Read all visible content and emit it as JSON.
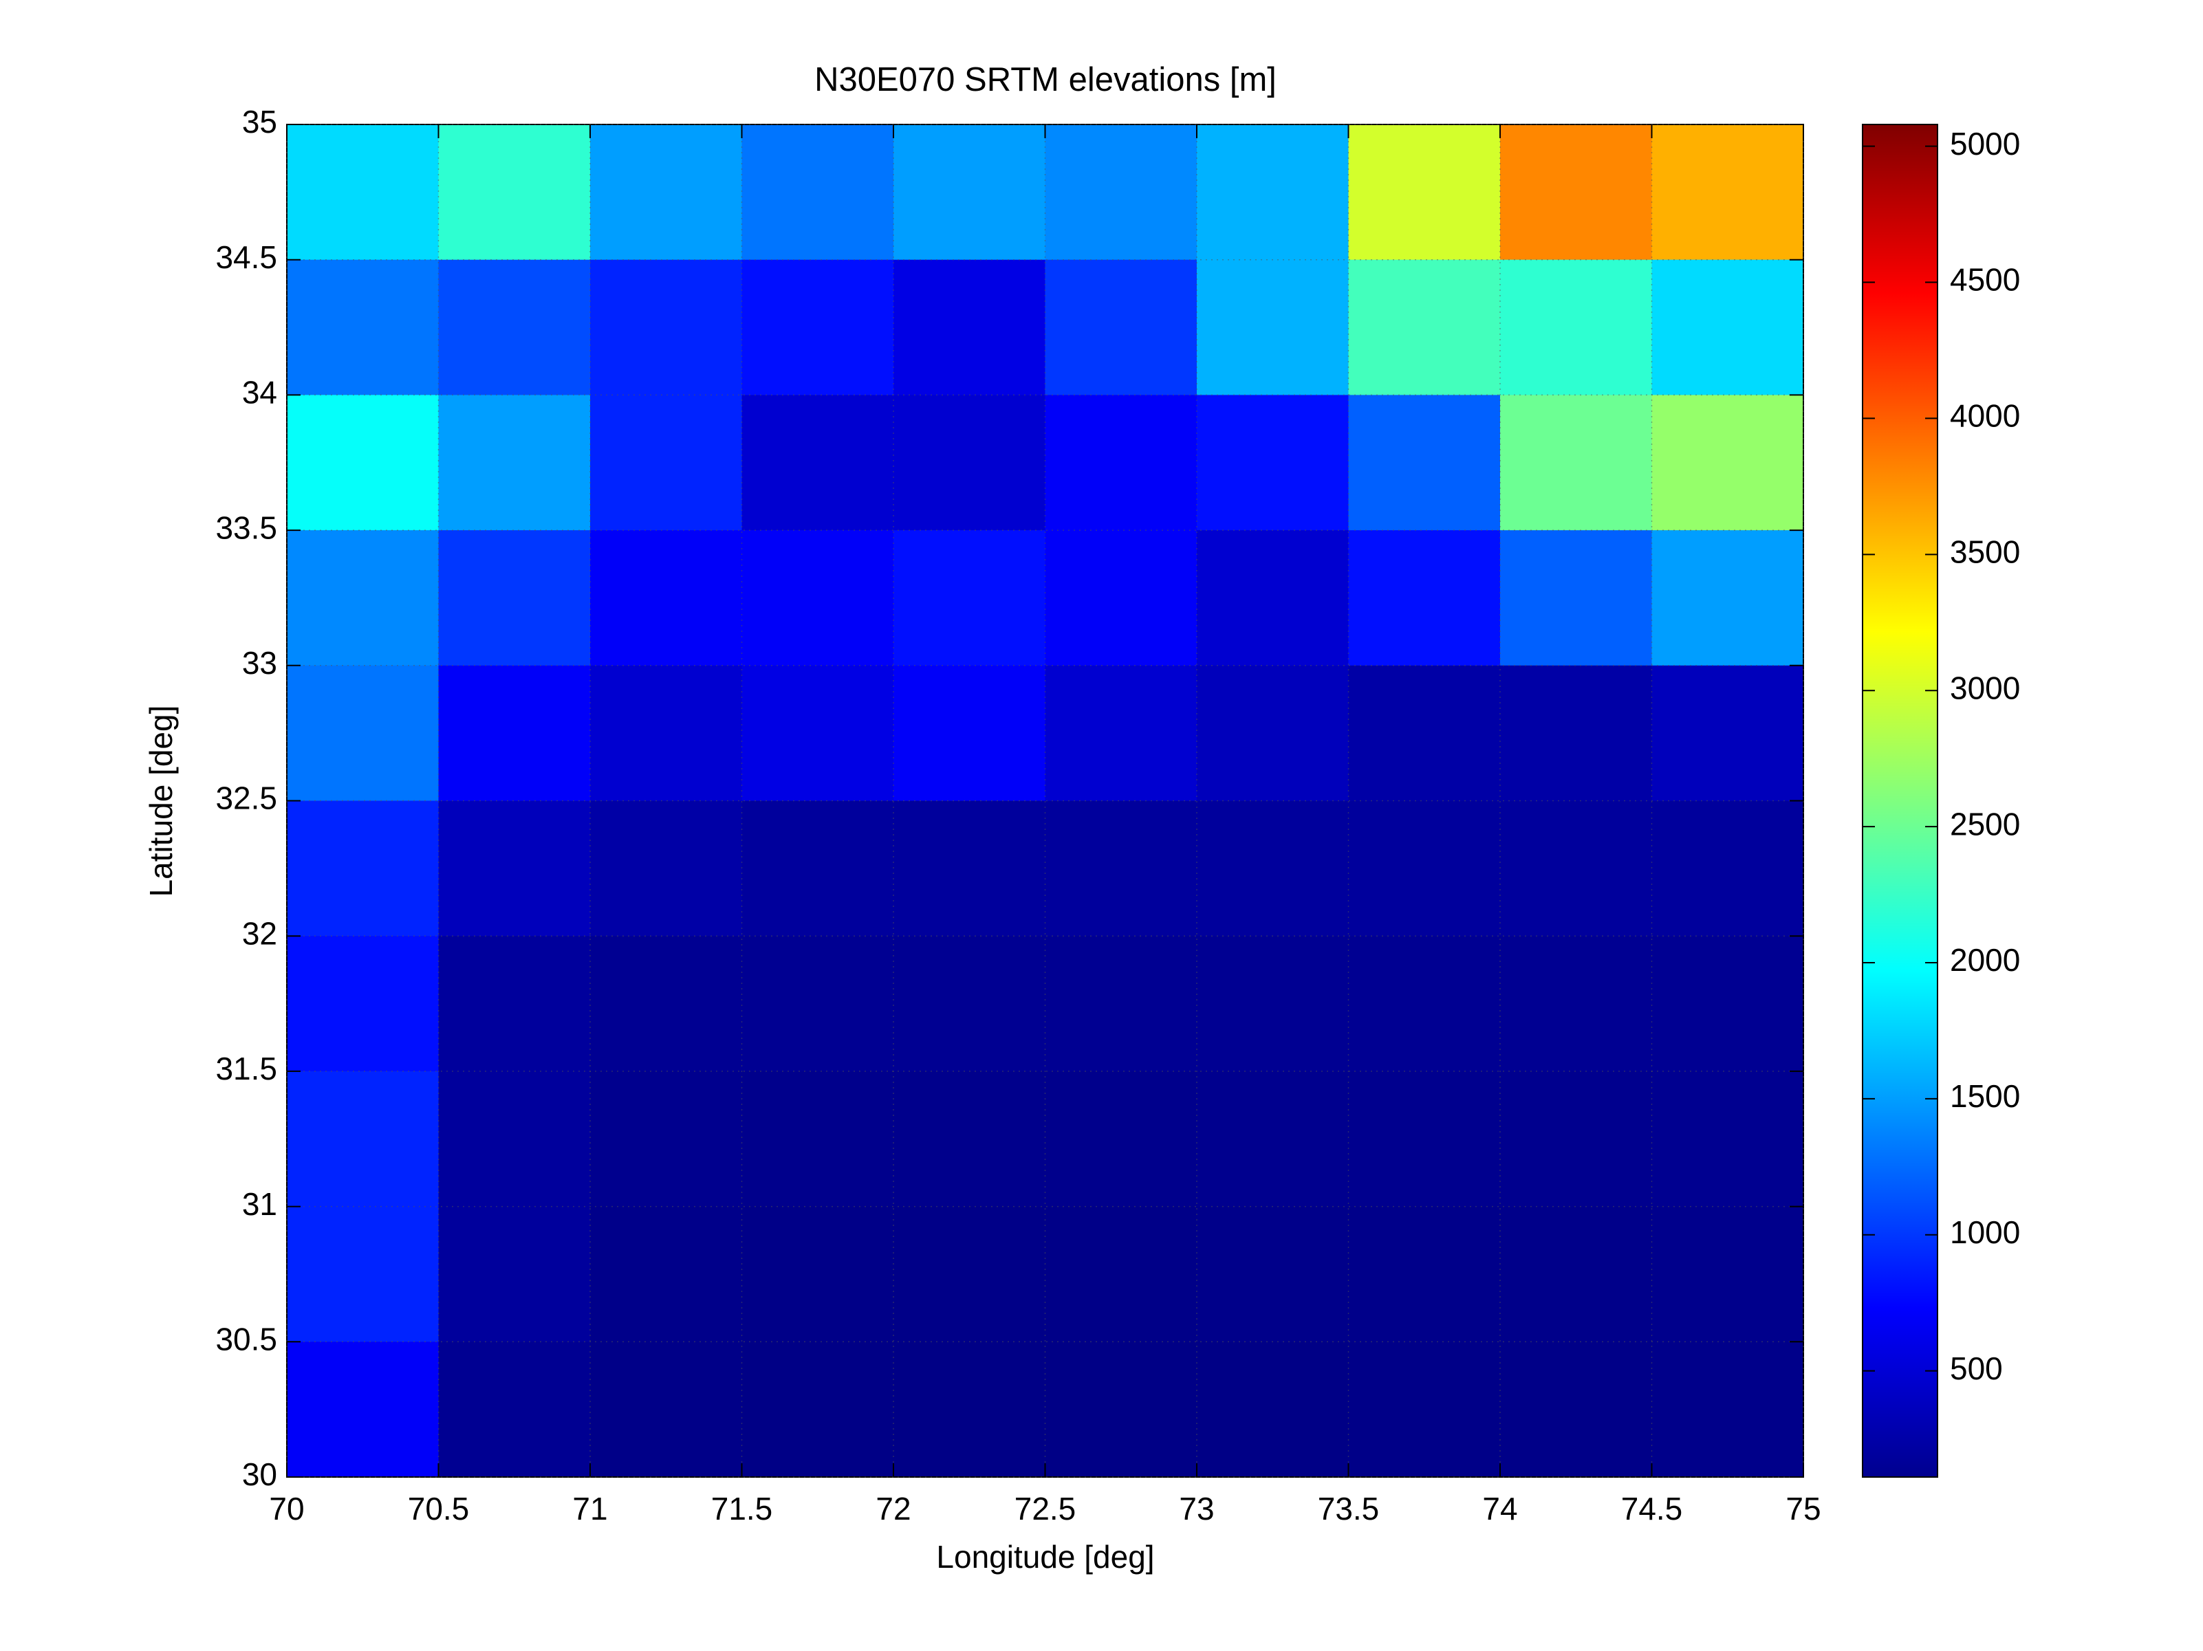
{
  "chart_data": {
    "type": "heatmap",
    "title": "N30E070 SRTM elevations [m]",
    "x_label": "Longitude [deg]",
    "y_label": "Latitude [deg]",
    "xlim": [
      70,
      75
    ],
    "ylim": [
      30,
      35
    ],
    "xticks": [
      70,
      70.5,
      71,
      71.5,
      72,
      72.5,
      73,
      73.5,
      74,
      74.5,
      75
    ],
    "yticks": [
      30,
      30.5,
      31,
      31.5,
      32,
      32.5,
      33,
      33.5,
      34,
      34.5,
      35
    ],
    "grid": true,
    "colormap": "jet",
    "z": [
      [
        1800,
        2200,
        1500,
        1300,
        1500,
        1400,
        1600,
        3000,
        3800,
        3600
      ],
      [
        1300,
        1100,
        900,
        800,
        600,
        1000,
        1600,
        2300,
        2200,
        1800
      ],
      [
        2000,
        1500,
        900,
        500,
        500,
        700,
        800,
        1200,
        2500,
        2700
      ],
      [
        1400,
        1000,
        700,
        700,
        800,
        700,
        500,
        800,
        1200,
        1500
      ],
      [
        1300,
        700,
        500,
        600,
        700,
        500,
        400,
        300,
        300,
        400
      ],
      [
        900,
        400,
        300,
        250,
        250,
        250,
        250,
        250,
        250,
        250
      ],
      [
        800,
        250,
        200,
        200,
        200,
        200,
        200,
        200,
        200,
        200
      ],
      [
        900,
        250,
        180,
        170,
        170,
        170,
        180,
        180,
        180,
        190
      ],
      [
        900,
        250,
        160,
        150,
        150,
        150,
        160,
        160,
        160,
        170
      ],
      [
        700,
        200,
        150,
        140,
        140,
        140,
        140,
        150,
        150,
        160
      ]
    ],
    "clim": [
      110,
      5080
    ],
    "cticks": [
      500,
      1000,
      1500,
      2000,
      2500,
      3000,
      3500,
      4000,
      4500,
      5000
    ]
  }
}
